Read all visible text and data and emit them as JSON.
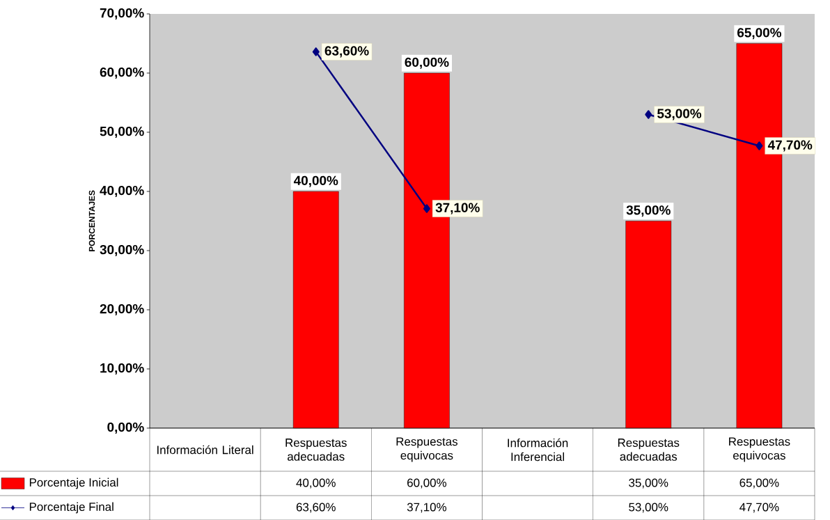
{
  "chart_data": {
    "type": "bar",
    "ylabel": "PORCENTAJES",
    "categories": [
      "Información Literal",
      "Respuestas adecuadas",
      "Respuestas equivocas",
      "Información Inferencial",
      "Respuestas adecuadas",
      "Respuestas equivocas"
    ],
    "series": [
      {
        "name": "Porcentaje Inicial",
        "color": "#ff0000",
        "values": [
          null,
          40,
          60,
          null,
          35,
          65
        ],
        "value_labels": [
          null,
          "40,00%",
          "60,00%",
          null,
          "35,00%",
          "65,00%"
        ]
      },
      {
        "name": "Porcentaje Final",
        "type": "line",
        "color": "#000080",
        "marker": "diamond",
        "values": [
          null,
          63.6,
          37.1,
          null,
          53,
          47.7
        ],
        "value_labels": [
          null,
          "63,60%",
          "37,10%",
          null,
          "53,00%",
          "47,70%"
        ]
      }
    ],
    "ylim": [
      0,
      70
    ],
    "yticks": [
      {
        "value": 0,
        "label": "0,00%"
      },
      {
        "value": 10,
        "label": "10,00%"
      },
      {
        "value": 20,
        "label": "20,00%"
      },
      {
        "value": 30,
        "label": "30,00%"
      },
      {
        "value": 40,
        "label": "40,00%"
      },
      {
        "value": 50,
        "label": "50,00%"
      },
      {
        "value": 60,
        "label": "60,00%"
      },
      {
        "value": 70,
        "label": "70,00%"
      }
    ],
    "grid": false,
    "legend": "bottom left"
  }
}
